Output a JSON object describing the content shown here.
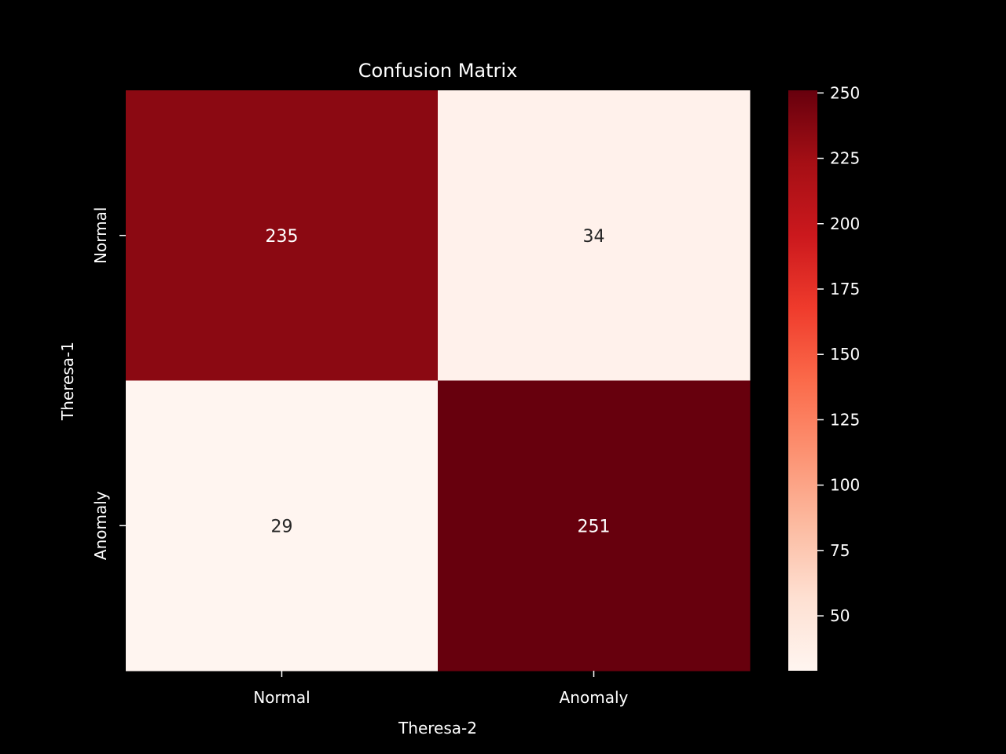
{
  "chart_data": {
    "type": "heatmap",
    "title": "Confusion Matrix",
    "xlabel": "Theresa-2",
    "ylabel": "Theresa-1",
    "x_categories": [
      "Normal",
      "Anomaly"
    ],
    "y_categories": [
      "Normal",
      "Anomaly"
    ],
    "values": [
      [
        235,
        34
      ],
      [
        29,
        251
      ]
    ],
    "colorbar": {
      "cmap": "Reds",
      "vmin": 29,
      "vmax": 251,
      "ticks": [
        50,
        75,
        100,
        125,
        150,
        175,
        200,
        225,
        250
      ]
    },
    "colors": {
      "background": "#000000",
      "text": "#ffffff",
      "annotation_dark_cell": "#ffffff",
      "annotation_light_cell": "#262626"
    }
  }
}
